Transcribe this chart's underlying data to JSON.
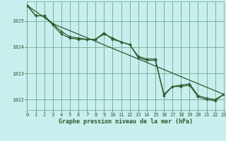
{
  "title": "Graphe pression niveau de la mer (hPa)",
  "background_color": "#c8eeee",
  "grid_color": "#6aaa8a",
  "line_color": "#2d5a2d",
  "ylim": [
    1021.6,
    1025.75
  ],
  "xlim": [
    0,
    23
  ],
  "yticks": [
    1022,
    1023,
    1024,
    1025
  ],
  "xticks": [
    0,
    1,
    2,
    3,
    4,
    5,
    6,
    7,
    8,
    9,
    10,
    11,
    12,
    13,
    14,
    15,
    16,
    17,
    18,
    19,
    20,
    21,
    22,
    23
  ],
  "line1_x": [
    0,
    1,
    2,
    3,
    4,
    5,
    6,
    7,
    8,
    9,
    10,
    11,
    12,
    13,
    14,
    15,
    16,
    17,
    18,
    19,
    20,
    21,
    22,
    23
  ],
  "line1_y": [
    1025.6,
    1025.2,
    1025.2,
    1024.85,
    1024.5,
    1024.35,
    1024.3,
    1024.3,
    1024.3,
    1024.55,
    1024.3,
    1024.2,
    1024.1,
    1023.65,
    1023.55,
    1023.55,
    1022.15,
    1022.5,
    1022.55,
    1022.6,
    1022.15,
    1022.05,
    1022.0,
    1022.2
  ],
  "line2_x": [
    0,
    1,
    2,
    3,
    4,
    5,
    6,
    7,
    8,
    9,
    10,
    11,
    12,
    13,
    14,
    15,
    16,
    17,
    18,
    19,
    20,
    21,
    22,
    23
  ],
  "line2_y": [
    1025.6,
    1025.2,
    1025.2,
    1024.9,
    1024.6,
    1024.4,
    1024.35,
    1024.3,
    1024.3,
    1024.5,
    1024.35,
    1024.2,
    1024.1,
    1023.6,
    1023.5,
    1023.5,
    1022.2,
    1022.5,
    1022.5,
    1022.55,
    1022.1,
    1022.0,
    1021.95,
    1022.2
  ],
  "line3_x": [
    0,
    3,
    23
  ],
  "line3_y": [
    1025.6,
    1024.9,
    1022.2
  ],
  "tick_fontsize": 5,
  "label_fontsize": 6
}
